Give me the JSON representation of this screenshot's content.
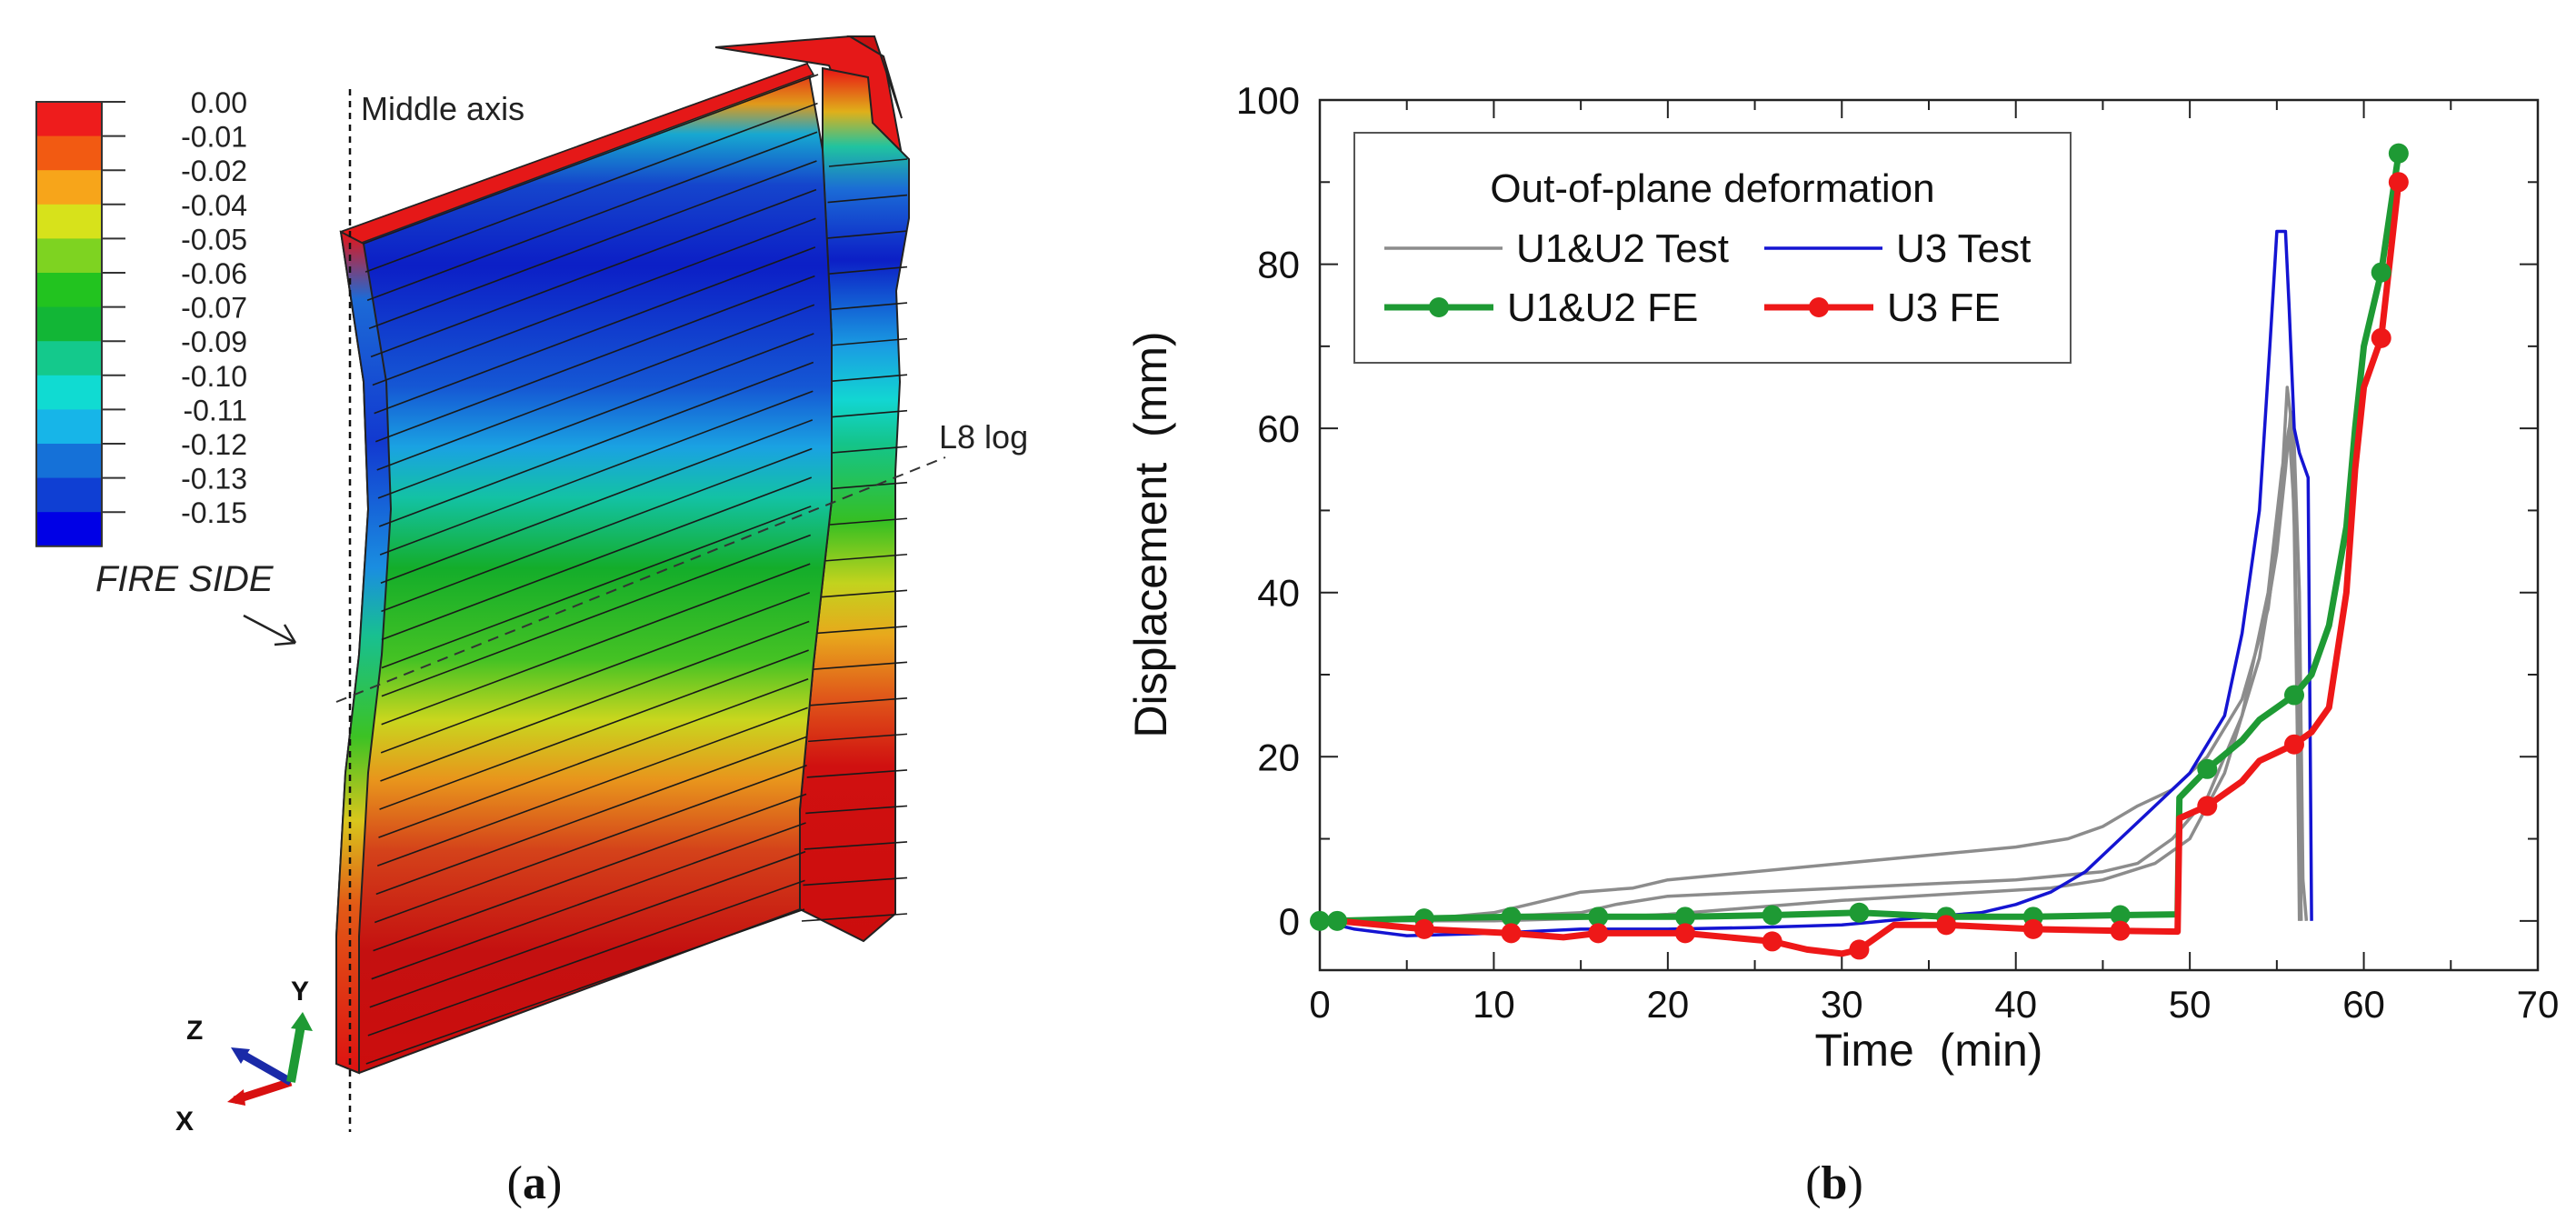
{
  "panel_a": {
    "label_text": "(a)",
    "label_letter": "a",
    "legend_values": [
      "0.00",
      "-0.01",
      "-0.02",
      "-0.04",
      "-0.05",
      "-0.06",
      "-0.07",
      "-0.09",
      "-0.10",
      "-0.11",
      "-0.12",
      "-0.13",
      "-0.15"
    ],
    "legend_colors": [
      "#ee1c1c",
      "#f25a12",
      "#f7a51a",
      "#d7e21b",
      "#7ed321",
      "#22c31f",
      "#12b636",
      "#14c98c",
      "#10dbd2",
      "#17b5e8",
      "#1571d8",
      "#0f3fd3",
      "#0000e6"
    ],
    "middle_axis_label": "Middle axis",
    "log_label": "L8 log",
    "fire_side_label": "FIRE SIDE",
    "axes_triad": {
      "x": "X",
      "y": "Y",
      "z": "Z"
    }
  },
  "panel_b": {
    "label_text": "(b)",
    "label_letter": "b"
  },
  "chart_data": {
    "type": "line",
    "title": "",
    "xlabel": "Time  (min)",
    "ylabel": "Displacement  (mm)",
    "xlim": [
      0,
      70
    ],
    "ylim": [
      -6,
      100
    ],
    "xticks": [
      0,
      10,
      20,
      30,
      40,
      50,
      60,
      70
    ],
    "yticks": [
      0,
      20,
      40,
      60,
      80,
      100
    ],
    "legend_title": "Out-of-plane deformation",
    "series": [
      {
        "name": "U1&U2 Test",
        "color": "#8c8c8c",
        "marker": false,
        "lines": [
          [
            [
              0,
              0
            ],
            [
              5,
              0
            ],
            [
              10,
              1
            ],
            [
              12,
              2
            ],
            [
              15,
              3.5
            ],
            [
              18,
              4
            ],
            [
              20,
              5
            ],
            [
              30,
              7
            ],
            [
              40,
              9
            ],
            [
              43,
              10
            ],
            [
              45,
              11.5
            ],
            [
              47,
              14
            ],
            [
              49,
              16
            ],
            [
              51,
              20
            ],
            [
              53,
              27
            ],
            [
              54.5,
              38
            ],
            [
              55.2,
              50
            ],
            [
              55.6,
              65
            ],
            [
              56,
              58
            ],
            [
              56.3,
              40
            ],
            [
              56.5,
              5
            ],
            [
              56.7,
              0
            ]
          ],
          [
            [
              0,
              0
            ],
            [
              5,
              0
            ],
            [
              10,
              0.5
            ],
            [
              15,
              1
            ],
            [
              17,
              2
            ],
            [
              20,
              3
            ],
            [
              30,
              4
            ],
            [
              40,
              5
            ],
            [
              45,
              6
            ],
            [
              47,
              7
            ],
            [
              49,
              10
            ],
            [
              51,
              15
            ],
            [
              53,
              25
            ],
            [
              54.5,
              40
            ],
            [
              55.3,
              55
            ],
            [
              55.7,
              60
            ],
            [
              56,
              50
            ],
            [
              56.2,
              30
            ],
            [
              56.4,
              0
            ]
          ],
          [
            [
              0,
              0
            ],
            [
              10,
              0
            ],
            [
              15,
              0.3
            ],
            [
              20,
              0.8
            ],
            [
              30,
              2.5
            ],
            [
              38,
              3.5
            ],
            [
              42,
              4
            ],
            [
              45,
              5
            ],
            [
              48,
              7
            ],
            [
              50,
              10
            ],
            [
              52,
              18
            ],
            [
              54,
              32
            ],
            [
              55,
              45
            ],
            [
              55.5,
              55
            ],
            [
              55.8,
              62
            ],
            [
              56,
              48
            ],
            [
              56.2,
              20
            ],
            [
              56.3,
              0
            ]
          ]
        ]
      },
      {
        "name": "U3 Test",
        "color": "#1414d2",
        "marker": false,
        "lines": [
          [
            [
              0,
              0
            ],
            [
              2,
              -1
            ],
            [
              5,
              -1.8
            ],
            [
              10,
              -1.5
            ],
            [
              15,
              -1
            ],
            [
              20,
              -1
            ],
            [
              25,
              -0.8
            ],
            [
              30,
              -0.5
            ],
            [
              35,
              0.5
            ],
            [
              38,
              1
            ],
            [
              40,
              2
            ],
            [
              42,
              3.5
            ],
            [
              44,
              6
            ],
            [
              46,
              10
            ],
            [
              48,
              14
            ],
            [
              50,
              18
            ],
            [
              52,
              25
            ],
            [
              53,
              35
            ],
            [
              54,
              50
            ],
            [
              54.6,
              70
            ],
            [
              55,
              84
            ],
            [
              55.5,
              84
            ],
            [
              55.7,
              75
            ],
            [
              56,
              60
            ],
            [
              56.3,
              57
            ],
            [
              56.8,
              54
            ],
            [
              57,
              0
            ]
          ]
        ]
      },
      {
        "name": "U1&U2 FE",
        "color": "#1e9a34",
        "marker": true,
        "lines": [
          [
            [
              0,
              0
            ],
            [
              1,
              0
            ],
            [
              6,
              0.3
            ],
            [
              11,
              0.5
            ],
            [
              16,
              0.5
            ],
            [
              21,
              0.5
            ],
            [
              26,
              0.7
            ],
            [
              31,
              1
            ],
            [
              36,
              0.5
            ],
            [
              41,
              0.5
            ],
            [
              46,
              0.7
            ],
            [
              49.3,
              0.8
            ],
            [
              49.4,
              15
            ],
            [
              51,
              18.5
            ],
            [
              53,
              22
            ],
            [
              54,
              24.5
            ],
            [
              55,
              26
            ],
            [
              56,
              27.5
            ],
            [
              57,
              30
            ],
            [
              58,
              36
            ],
            [
              59,
              48
            ],
            [
              59.5,
              60
            ],
            [
              60,
              70
            ],
            [
              61,
              79
            ],
            [
              62,
              93.5
            ]
          ]
        ],
        "markers": [
          [
            0,
            0
          ],
          [
            1,
            0
          ],
          [
            6,
            0.3
          ],
          [
            11,
            0.5
          ],
          [
            16,
            0.5
          ],
          [
            21,
            0.5
          ],
          [
            26,
            0.7
          ],
          [
            31,
            1
          ],
          [
            36,
            0.5
          ],
          [
            41,
            0.5
          ],
          [
            46,
            0.7
          ],
          [
            51,
            18.5
          ],
          [
            56,
            27.5
          ],
          [
            61,
            79
          ],
          [
            62,
            93.5
          ]
        ]
      },
      {
        "name": "U3 FE",
        "color": "#ee1818",
        "marker": true,
        "lines": [
          [
            [
              0,
              0
            ],
            [
              1,
              0
            ],
            [
              6,
              -1
            ],
            [
              11,
              -1.5
            ],
            [
              14,
              -2
            ],
            [
              16,
              -1.5
            ],
            [
              21,
              -1.5
            ],
            [
              26,
              -2.5
            ],
            [
              28,
              -3.5
            ],
            [
              30,
              -4
            ],
            [
              31,
              -3.5
            ],
            [
              33,
              -0.5
            ],
            [
              36,
              -0.5
            ],
            [
              41,
              -1
            ],
            [
              46,
              -1.2
            ],
            [
              49.3,
              -1.3
            ],
            [
              49.4,
              12.5
            ],
            [
              51,
              14
            ],
            [
              53,
              17
            ],
            [
              54,
              19.5
            ],
            [
              55,
              20.5
            ],
            [
              56,
              21.5
            ],
            [
              57,
              23
            ],
            [
              58,
              26
            ],
            [
              59,
              40
            ],
            [
              59.5,
              55
            ],
            [
              60,
              65
            ],
            [
              61,
              71
            ],
            [
              62,
              90
            ]
          ]
        ],
        "markers": [
          [
            6,
            -1
          ],
          [
            11,
            -1.5
          ],
          [
            16,
            -1.5
          ],
          [
            21,
            -1.5
          ],
          [
            26,
            -2.5
          ],
          [
            31,
            -3.5
          ],
          [
            36,
            -0.5
          ],
          [
            41,
            -1
          ],
          [
            46,
            -1.2
          ],
          [
            51,
            14
          ],
          [
            56,
            21.5
          ],
          [
            61,
            71
          ],
          [
            62,
            90
          ]
        ]
      }
    ]
  }
}
